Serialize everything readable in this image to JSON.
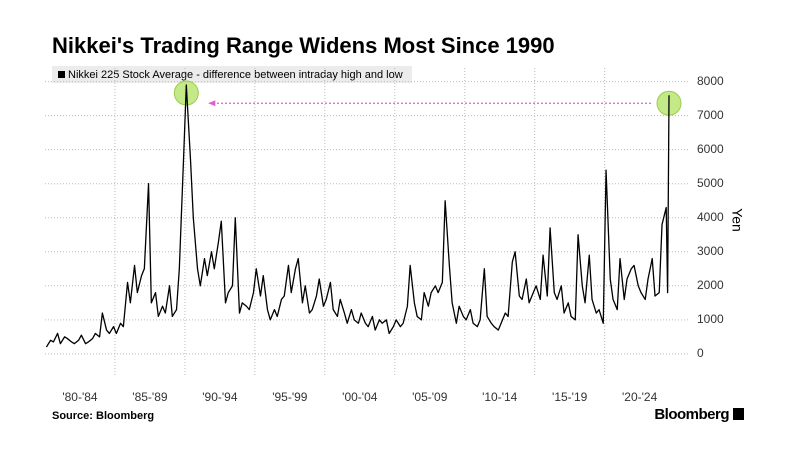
{
  "chart_data": {
    "type": "line",
    "title": "Nikkei's Trading Range Widens Most Since 1990",
    "legend_label": "Nikkei 225 Stock Average - difference between intraday high and low",
    "y_axis_label": "Yen",
    "source": "Source: Bloomberg",
    "brand": "Bloomberg",
    "color": "#000000",
    "highlight_color": "#b5e36a",
    "arrow_color": "#e85ad0",
    "grid": true,
    "xlim": [
      1980,
      2026.1
    ],
    "ylim": [
      -650,
      8400
    ],
    "yticks": [
      0,
      1000,
      2000,
      3000,
      4000,
      5000,
      6000,
      7000,
      8000
    ],
    "xticks": [
      {
        "value": 1982.5,
        "label": "'80-'84"
      },
      {
        "value": 1987.5,
        "label": "'85-'89"
      },
      {
        "value": 1992.5,
        "label": "'90-'94"
      },
      {
        "value": 1997.5,
        "label": "'95-'99"
      },
      {
        "value": 2002.5,
        "label": "'00-'04"
      },
      {
        "value": 2007.5,
        "label": "'05-'09"
      },
      {
        "value": 2012.5,
        "label": "'10-'14"
      },
      {
        "value": 2017.5,
        "label": "'15-'19"
      },
      {
        "value": 2022.5,
        "label": "'20-'24"
      }
    ],
    "xgrid": [
      1985,
      1990,
      1995,
      2000,
      2005,
      2010,
      2015,
      2020
    ],
    "x": [
      1980.1,
      1980.4,
      1980.6,
      1980.9,
      1981.1,
      1981.4,
      1981.6,
      1981.9,
      1982.1,
      1982.4,
      1982.6,
      1982.9,
      1983.1,
      1983.4,
      1983.6,
      1983.9,
      1984.1,
      1984.4,
      1984.6,
      1984.9,
      1985.1,
      1985.4,
      1985.6,
      1985.9,
      1986.1,
      1986.4,
      1986.6,
      1986.9,
      1987.1,
      1987.4,
      1987.6,
      1987.9,
      1988.1,
      1988.4,
      1988.6,
      1988.9,
      1989.1,
      1989.4,
      1989.6,
      1989.9,
      1990.1,
      1990.4,
      1990.6,
      1990.9,
      1991.1,
      1991.4,
      1991.6,
      1991.9,
      1992.1,
      1992.4,
      1992.6,
      1992.9,
      1993.1,
      1993.4,
      1993.6,
      1993.9,
      1994.1,
      1994.4,
      1994.6,
      1994.9,
      1995.1,
      1995.4,
      1995.6,
      1995.9,
      1996.1,
      1996.4,
      1996.6,
      1996.9,
      1997.1,
      1997.4,
      1997.6,
      1997.9,
      1998.1,
      1998.4,
      1998.6,
      1998.9,
      1999.1,
      1999.4,
      1999.6,
      1999.9,
      2000.1,
      2000.4,
      2000.6,
      2000.9,
      2001.1,
      2001.4,
      2001.6,
      2001.9,
      2002.1,
      2002.4,
      2002.6,
      2002.9,
      2003.1,
      2003.4,
      2003.6,
      2003.9,
      2004.1,
      2004.4,
      2004.6,
      2004.9,
      2005.1,
      2005.4,
      2005.6,
      2005.9,
      2006.1,
      2006.4,
      2006.6,
      2006.9,
      2007.1,
      2007.4,
      2007.6,
      2007.9,
      2008.1,
      2008.4,
      2008.6,
      2008.9,
      2009.1,
      2009.4,
      2009.6,
      2009.9,
      2010.1,
      2010.4,
      2010.6,
      2010.9,
      2011.1,
      2011.4,
      2011.6,
      2011.9,
      2012.1,
      2012.4,
      2012.6,
      2012.9,
      2013.1,
      2013.4,
      2013.6,
      2013.9,
      2014.1,
      2014.4,
      2014.6,
      2014.9,
      2015.1,
      2015.4,
      2015.6,
      2015.9,
      2016.1,
      2016.4,
      2016.6,
      2016.9,
      2017.1,
      2017.4,
      2017.6,
      2017.9,
      2018.1,
      2018.4,
      2018.6,
      2018.9,
      2019.1,
      2019.4,
      2019.6,
      2019.9,
      2020.1,
      2020.4,
      2020.6,
      2020.9,
      2021.1,
      2021.4,
      2021.6,
      2021.9,
      2022.1,
      2022.4,
      2022.6,
      2022.9,
      2023.1,
      2023.4,
      2023.6,
      2023.9,
      2024.1,
      2024.4,
      2024.5,
      2024.6
    ],
    "values": [
      200,
      400,
      350,
      600,
      300,
      500,
      450,
      350,
      300,
      400,
      550,
      300,
      350,
      450,
      600,
      500,
      1200,
      700,
      600,
      800,
      600,
      900,
      800,
      2100,
      1500,
      2600,
      1800,
      2300,
      2500,
      5000,
      1500,
      1800,
      1100,
      1400,
      1200,
      2000,
      1100,
      1300,
      2500,
      5700,
      7900,
      5700,
      4000,
      2500,
      2000,
      2800,
      2300,
      3000,
      2500,
      3300,
      3900,
      1500,
      1800,
      2000,
      4000,
      1200,
      1500,
      1400,
      1300,
      1800,
      2500,
      1700,
      2300,
      1300,
      1000,
      1300,
      1100,
      1600,
      1700,
      2600,
      1800,
      2500,
      2800,
      1500,
      2000,
      1200,
      1300,
      1700,
      2200,
      1400,
      1600,
      2100,
      1300,
      1100,
      1600,
      1200,
      900,
      1300,
      1000,
      900,
      1200,
      900,
      800,
      1100,
      700,
      1000,
      900,
      1000,
      600,
      800,
      1000,
      800,
      900,
      1400,
      2600,
      1500,
      1100,
      1000,
      1800,
      1400,
      1800,
      2000,
      1800,
      2100,
      4500,
      2600,
      1500,
      900,
      1400,
      1100,
      1000,
      1300,
      900,
      800,
      1000,
      2500,
      1100,
      900,
      800,
      700,
      900,
      1200,
      1100,
      2700,
      3000,
      1700,
      1600,
      2200,
      1500,
      1800,
      2000,
      1600,
      2900,
      1700,
      3700,
      1800,
      1600,
      2000,
      1200,
      1500,
      1100,
      1000,
      3500,
      2000,
      1500,
      2900,
      1600,
      1200,
      1300,
      900,
      5400,
      2200,
      1600,
      1300,
      2800,
      1600,
      2200,
      2500,
      2600,
      2000,
      1800,
      1600,
      2200,
      2800,
      1700,
      1800,
      3800,
      4300,
      1800,
      7600
    ]
  }
}
